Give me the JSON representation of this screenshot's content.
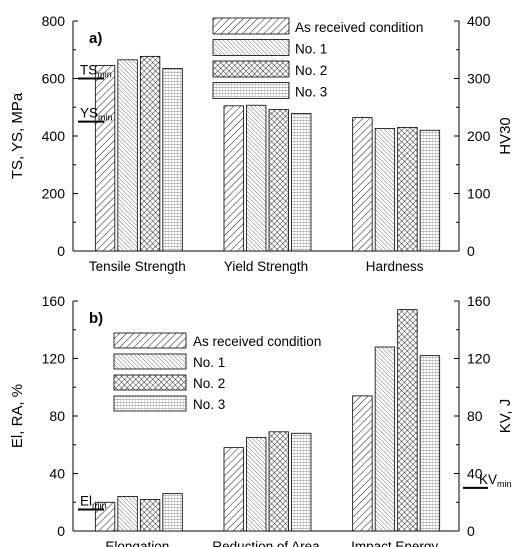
{
  "chart_data": [
    {
      "type": "bar",
      "panel_label": "a)",
      "categories": [
        "Tensile Strength",
        "Yield Strength",
        "Hardness"
      ],
      "ylabel": "TS, YS, MPa",
      "ylabel_right": "HV30",
      "ylim": [
        0,
        800
      ],
      "ylim_right": [
        0,
        400
      ],
      "yticks": [
        "0",
        "200",
        "400",
        "600",
        "800"
      ],
      "yticks_right": [
        "0",
        "100",
        "200",
        "300",
        "400"
      ],
      "legend_position": "top-center",
      "series": [
        {
          "name": "As received condition",
          "values": [
            645,
            505,
            232
          ],
          "axis": [
            "left",
            "left",
            "right"
          ]
        },
        {
          "name": "No. 1",
          "values": [
            665,
            507,
            213
          ],
          "axis": [
            "left",
            "left",
            "right"
          ]
        },
        {
          "name": "No. 2",
          "values": [
            677,
            492,
            215
          ],
          "axis": [
            "left",
            "left",
            "right"
          ]
        },
        {
          "name": "No. 3",
          "values": [
            635,
            478,
            210
          ],
          "axis": [
            "left",
            "left",
            "right"
          ]
        }
      ],
      "reference_lines": [
        {
          "base": "TS",
          "sub": "min",
          "value": 600,
          "axis": "left",
          "side": "left"
        },
        {
          "base": "YS",
          "sub": "min",
          "value": 450,
          "axis": "left",
          "side": "left"
        }
      ]
    },
    {
      "type": "bar",
      "panel_label": "b)",
      "categories": [
        "Elongation",
        "Reduction of Area",
        "Impact Energy"
      ],
      "ylabel": "El, RA, %",
      "ylabel_right": "KV, J",
      "ylim": [
        0,
        160
      ],
      "ylim_right": [
        0,
        160
      ],
      "yticks": [
        "0",
        "40",
        "80",
        "120",
        "160"
      ],
      "yticks_right": [
        "0",
        "40",
        "80",
        "120",
        "160"
      ],
      "legend_position": "top-left",
      "series": [
        {
          "name": "As received condition",
          "values": [
            20,
            58,
            94
          ],
          "axis": [
            "left",
            "left",
            "right"
          ]
        },
        {
          "name": "No. 1",
          "values": [
            24,
            65,
            128
          ],
          "axis": [
            "left",
            "left",
            "right"
          ]
        },
        {
          "name": "No. 2",
          "values": [
            22,
            69,
            154
          ],
          "axis": [
            "left",
            "left",
            "right"
          ]
        },
        {
          "name": "No. 3",
          "values": [
            26,
            68,
            122
          ],
          "axis": [
            "left",
            "left",
            "right"
          ]
        }
      ],
      "reference_lines": [
        {
          "base": "El",
          "sub": "min",
          "value": 15,
          "axis": "left",
          "side": "left"
        },
        {
          "base": "KV",
          "sub": "min",
          "value": 30,
          "axis": "right",
          "side": "right"
        }
      ]
    }
  ]
}
